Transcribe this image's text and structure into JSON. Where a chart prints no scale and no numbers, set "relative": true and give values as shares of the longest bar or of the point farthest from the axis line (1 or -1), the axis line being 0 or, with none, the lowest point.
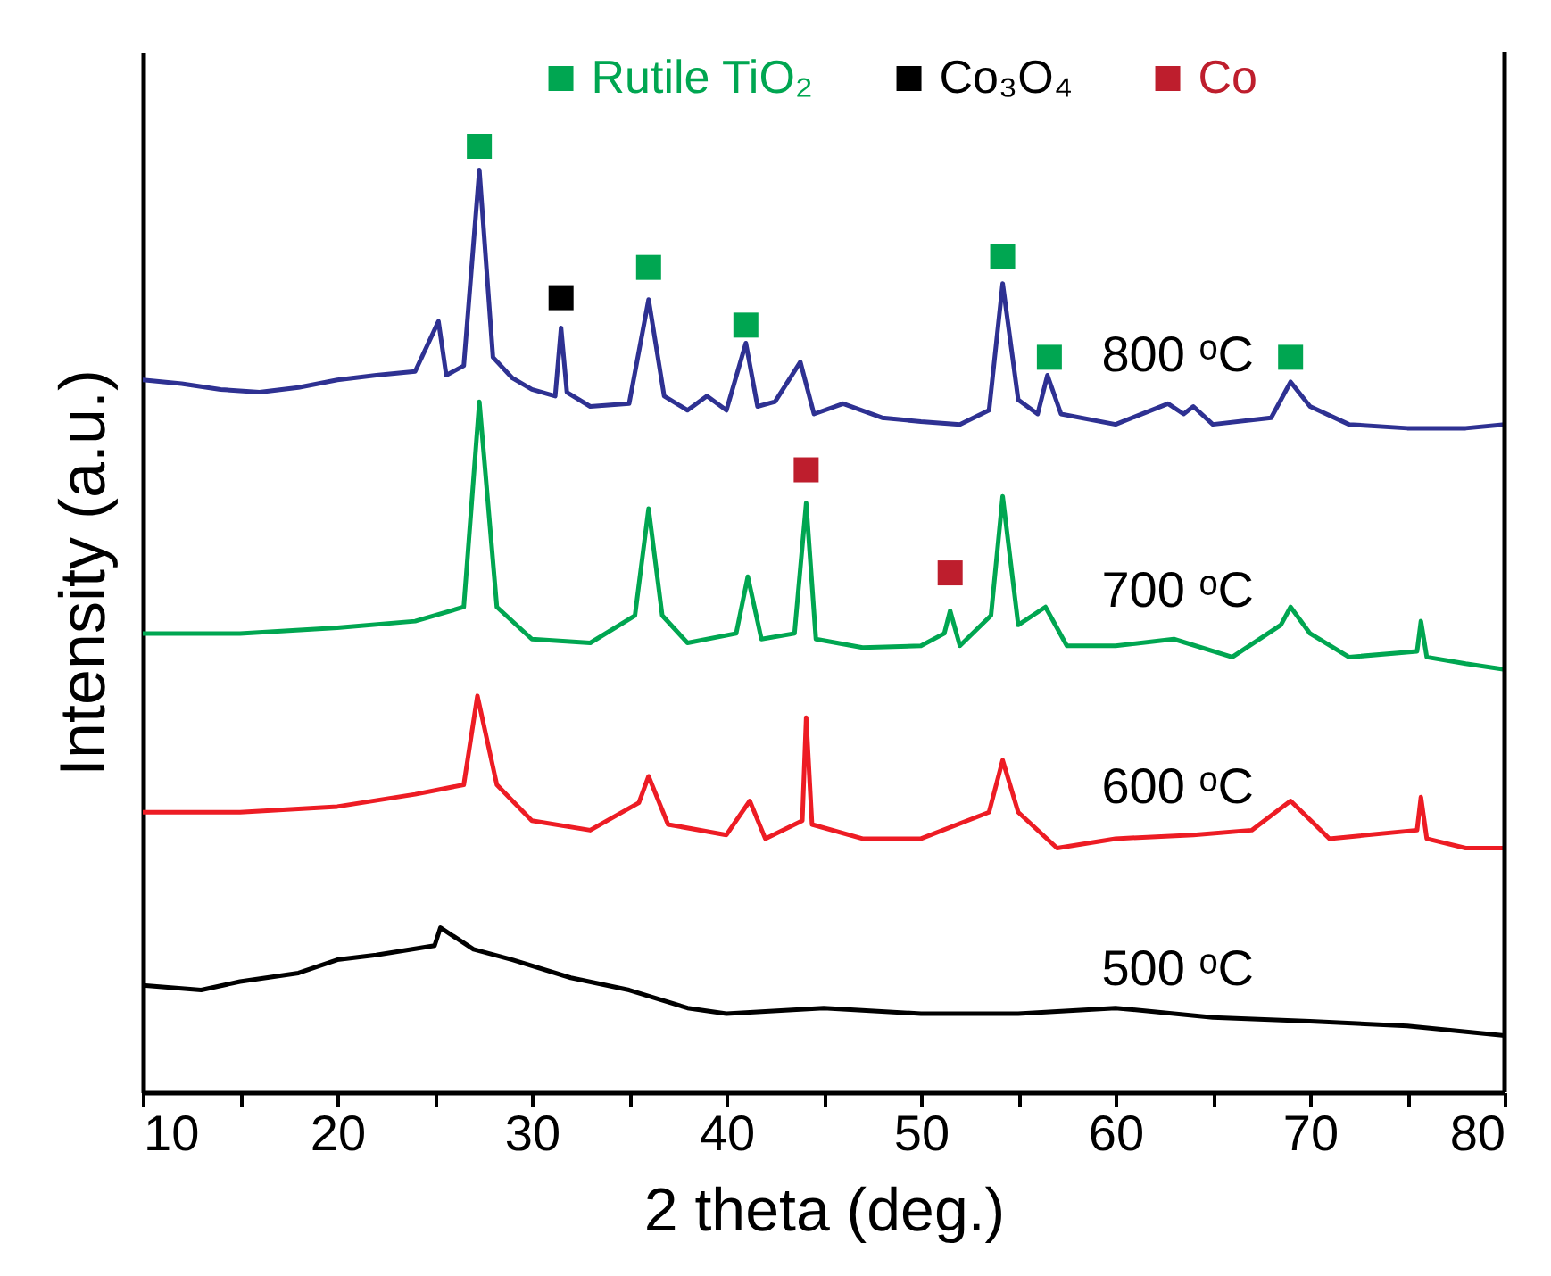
{
  "chart_data": {
    "type": "line",
    "relative": true,
    "xlabel": "2 theta (deg.)",
    "ylabel": "Intensity (a.u.)",
    "xlim": [
      10,
      80
    ],
    "xticks": [
      10,
      {
        "value": 15,
        "label": null
      },
      20,
      {
        "value": 25,
        "label": null
      },
      30,
      {
        "value": 35,
        "label": null
      },
      40,
      {
        "value": 45,
        "label": null
      },
      50,
      {
        "value": 55,
        "label": null
      },
      60,
      {
        "value": 65,
        "label": null
      },
      70,
      {
        "value": 75,
        "label": null
      },
      80
    ],
    "legend": "top",
    "grid": false,
    "series": [
      {
        "color": "#2e3192",
        "x": [
          10,
          12,
          14,
          16,
          18,
          20,
          22,
          24,
          25.2,
          25.6,
          26.5,
          27.3,
          28,
          29,
          30,
          31.2,
          31.5,
          31.8,
          33,
          35,
          36,
          36.8,
          38,
          39,
          40,
          41,
          41.6,
          42.5,
          43.8,
          44.5,
          46,
          48,
          50,
          52,
          53.5,
          54.2,
          55,
          56,
          56.5,
          57.2,
          60,
          62.7,
          63.5,
          64,
          65,
          68,
          69,
          70,
          72,
          75,
          78,
          80
        ],
        "values": [
          0.753,
          0.749,
          0.743,
          0.74,
          0.745,
          0.753,
          0.758,
          0.762,
          0.815,
          0.758,
          0.768,
          0.975,
          0.777,
          0.755,
          0.743,
          0.736,
          0.808,
          0.74,
          0.725,
          0.728,
          0.838,
          0.736,
          0.721,
          0.736,
          0.721,
          0.792,
          0.725,
          0.73,
          0.772,
          0.717,
          0.728,
          0.713,
          0.709,
          0.706,
          0.721,
          0.855,
          0.732,
          0.717,
          0.758,
          0.717,
          0.706,
          0.728,
          0.717,
          0.725,
          0.706,
          0.713,
          0.751,
          0.725,
          0.706,
          0.702,
          0.702,
          0.706
        ]
      },
      {
        "color": "#00a651",
        "x": [
          10,
          15,
          20,
          24,
          26.5,
          27.3,
          28.2,
          30,
          33,
          35.3,
          36,
          36.7,
          38,
          40.5,
          41.1,
          41.8,
          43.5,
          44.1,
          44.6,
          47,
          50,
          51.2,
          51.5,
          52,
          53.6,
          54.2,
          55,
          56.4,
          57.5,
          60,
          63,
          66,
          68.5,
          69,
          70,
          72,
          75.5,
          75.7,
          76,
          78,
          80
        ],
        "values": [
          0.485,
          0.485,
          0.491,
          0.498,
          0.513,
          0.73,
          0.513,
          0.479,
          0.475,
          0.504,
          0.617,
          0.504,
          0.475,
          0.485,
          0.545,
          0.479,
          0.485,
          0.623,
          0.479,
          0.47,
          0.472,
          0.485,
          0.509,
          0.472,
          0.504,
          0.63,
          0.494,
          0.513,
          0.472,
          0.472,
          0.479,
          0.46,
          0.494,
          0.513,
          0.485,
          0.46,
          0.466,
          0.498,
          0.46,
          0.453,
          0.447
        ]
      },
      {
        "color": "#ed1c24",
        "x": [
          10,
          15,
          20,
          24,
          26.5,
          27.2,
          28.2,
          30,
          33,
          35.5,
          36,
          37,
          40,
          41.2,
          42,
          43.9,
          44.1,
          44.4,
          47,
          50,
          53.5,
          54.2,
          55,
          57,
          60,
          64,
          67,
          69,
          71,
          75.5,
          75.7,
          76,
          78,
          80
        ],
        "values": [
          0.296,
          0.296,
          0.302,
          0.315,
          0.325,
          0.419,
          0.325,
          0.287,
          0.277,
          0.306,
          0.334,
          0.283,
          0.272,
          0.308,
          0.268,
          0.287,
          0.396,
          0.283,
          0.268,
          0.268,
          0.296,
          0.351,
          0.296,
          0.258,
          0.268,
          0.272,
          0.277,
          0.308,
          0.268,
          0.277,
          0.312,
          0.268,
          0.258,
          0.258
        ]
      },
      {
        "color": "#000000",
        "x": [
          10,
          13,
          15,
          18,
          20,
          22,
          25,
          25.3,
          27,
          29,
          32,
          35,
          38,
          40,
          45,
          50,
          55,
          60,
          65,
          70,
          75,
          80
        ],
        "values": [
          0.113,
          0.108,
          0.117,
          0.126,
          0.14,
          0.145,
          0.155,
          0.174,
          0.151,
          0.14,
          0.121,
          0.108,
          0.089,
          0.083,
          0.089,
          0.083,
          0.083,
          0.089,
          0.079,
          0.075,
          0.07,
          0.06
        ]
      },
      {
        "type": "scatter",
        "name": "Rutile TiO₂",
        "color": "#00a651",
        "marker": "square",
        "x": [
          27.3,
          36,
          41,
          54.2,
          56.6,
          69
        ],
        "values": [
          1.0,
          0.872,
          0.811,
          0.883,
          0.777,
          0.777
        ]
      },
      {
        "type": "scatter",
        "name": "Co₃O₄",
        "color": "#000000",
        "marker": "square",
        "x": [
          31.5
        ],
        "values": [
          0.84
        ]
      },
      {
        "type": "scatter",
        "name": "Co",
        "color": "#be1e2d",
        "marker": "square",
        "x": [
          44.1,
          51.5
        ],
        "values": [
          0.658,
          0.549
        ]
      }
    ],
    "annotations": [
      "800 ᵒC",
      "700 ᵒC",
      "600 ᵒC",
      "500 ᵒC"
    ]
  }
}
